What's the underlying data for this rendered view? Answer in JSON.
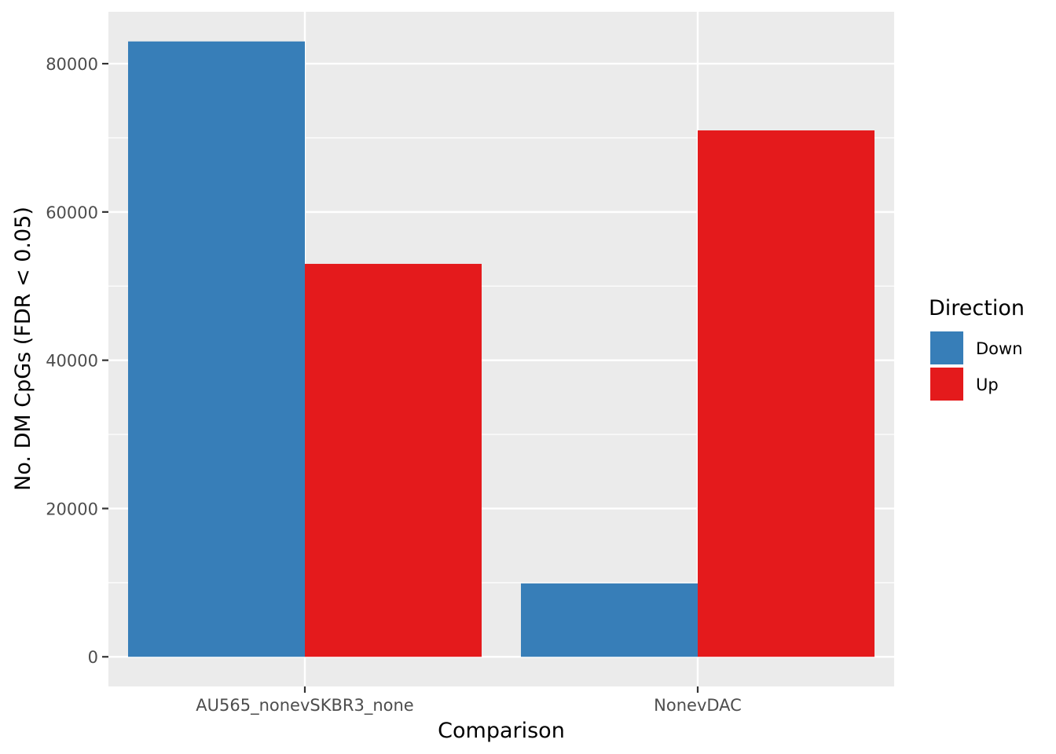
{
  "chart_data": {
    "type": "bar",
    "categories": [
      "AU565_nonevSKBR3_none",
      "NonevDAC"
    ],
    "series": [
      {
        "name": "Down",
        "values": [
          83000,
          9900
        ],
        "color": "#377EB8"
      },
      {
        "name": "Up",
        "values": [
          53000,
          71000
        ],
        "color": "#E41A1C"
      }
    ],
    "xlabel": "Comparison",
    "ylabel": "No. DM CpGs (FDR < 0.05)",
    "ylim": [
      -4000,
      87000
    ],
    "yticks": [
      0,
      20000,
      40000,
      60000,
      80000
    ],
    "grid": true,
    "legend": {
      "title": "Direction",
      "position": "right"
    },
    "panel_background": "#EBEBEB",
    "grid_color": "#FFFFFF"
  }
}
